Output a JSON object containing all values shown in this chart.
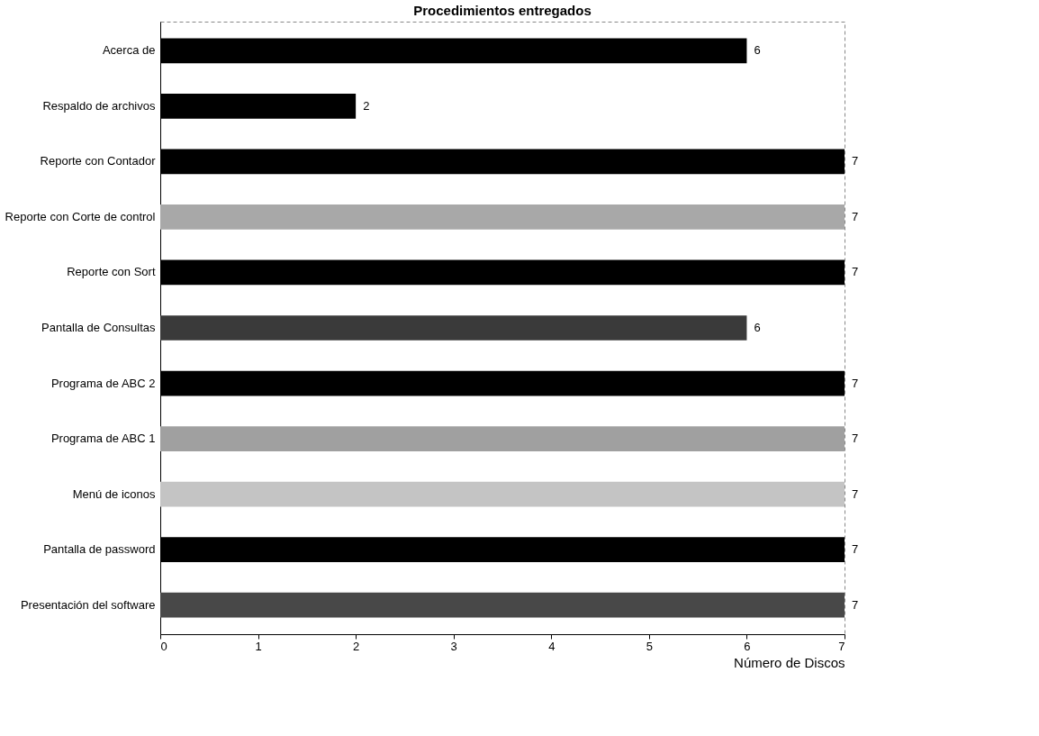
{
  "chart_data": {
    "type": "bar",
    "orientation": "horizontal",
    "title": "Procedimientos entregados",
    "xlabel": "Número de Discos",
    "categories": [
      "Acerca de",
      "Respaldo de archivos",
      "Reporte con Contador",
      "Reporte con Corte de control",
      "Reporte con Sort",
      "Pantalla de Consultas",
      "Programa de ABC 2",
      "Programa de ABC 1",
      "Menú de iconos",
      "Pantalla de password",
      "Presentación del software"
    ],
    "values": [
      6,
      2,
      7,
      7,
      7,
      6,
      7,
      7,
      7,
      7,
      7
    ],
    "colors": [
      "#000000",
      "#000000",
      "#000000",
      "#a8a8a8",
      "#000000",
      "#3a3a3a",
      "#000000",
      "#a0a0a0",
      "#c4c4c4",
      "#000000",
      "#484848"
    ],
    "xlim": [
      0,
      7
    ],
    "xticks": [
      0,
      1,
      2,
      3,
      4,
      5,
      6,
      7
    ],
    "grid": false,
    "legend": false,
    "data_labels": true
  }
}
